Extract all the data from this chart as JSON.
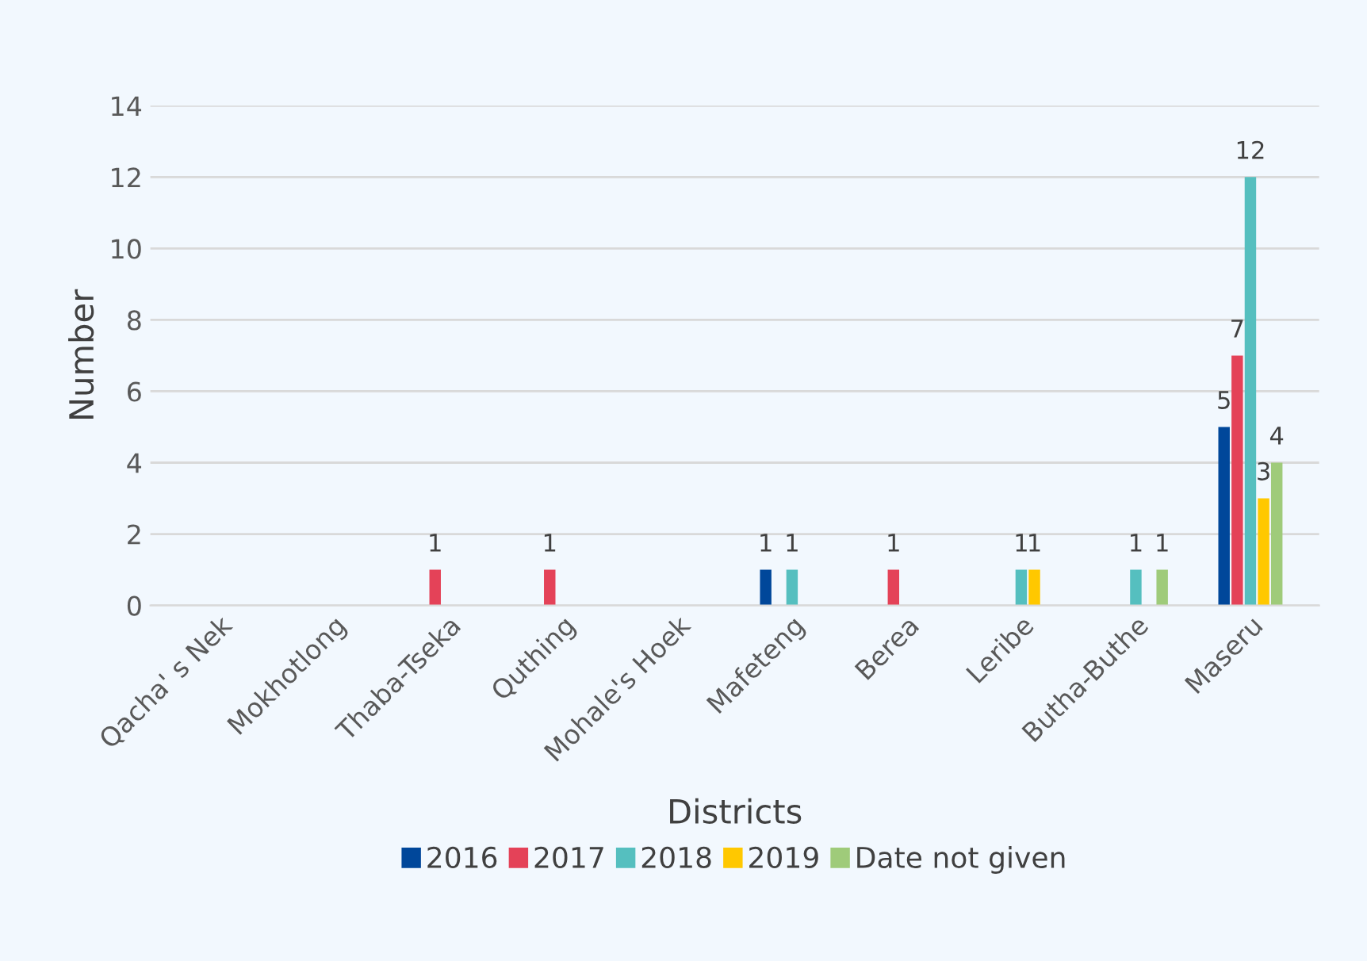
{
  "chart_data": {
    "type": "bar",
    "xlabel": "Districts",
    "ylabel": "Number",
    "categories": [
      "Qacha' s Nek",
      "Mokhotlong",
      "Thaba-Tseka",
      "Quthing",
      "Mohale's Hoek",
      "Mafeteng",
      "Berea",
      "Leribe",
      "Butha-Buthe",
      "Maseru"
    ],
    "series": [
      {
        "name": "2016",
        "color": "#00479a",
        "values": [
          null,
          null,
          null,
          null,
          null,
          1,
          null,
          null,
          null,
          5
        ]
      },
      {
        "name": "2017",
        "color": "#e44258",
        "values": [
          null,
          null,
          1,
          1,
          null,
          null,
          1,
          null,
          null,
          7
        ]
      },
      {
        "name": "2018",
        "color": "#55bfbf",
        "values": [
          null,
          null,
          null,
          null,
          null,
          1,
          null,
          1,
          1,
          12
        ]
      },
      {
        "name": "2019",
        "color": "#ffc800",
        "values": [
          null,
          null,
          null,
          null,
          null,
          null,
          null,
          1,
          null,
          3
        ]
      },
      {
        "name": "Date not given",
        "color": "#9fcb7a",
        "values": [
          null,
          null,
          null,
          null,
          null,
          null,
          null,
          null,
          1,
          4
        ]
      }
    ],
    "ylim": [
      0,
      14
    ],
    "yticks": [
      0,
      2,
      4,
      6,
      8,
      10,
      12,
      14
    ],
    "grid": "y",
    "legend": "bottom",
    "data_labels": true
  }
}
